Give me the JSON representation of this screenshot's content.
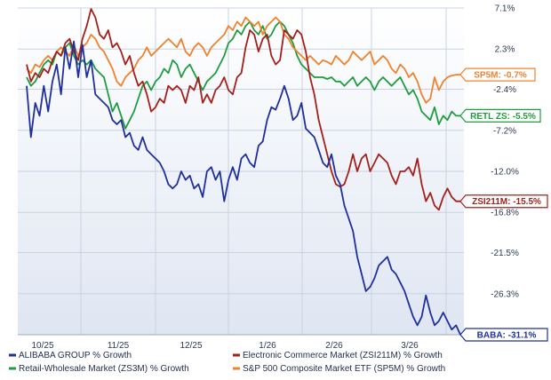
{
  "chart_data": {
    "type": "line",
    "x_ticks": [
      "10/25",
      "11/25",
      "12/25",
      "1/26",
      "2/26",
      "3/26"
    ],
    "y_ticks": [
      "7.1%",
      "2.3%",
      "-2.4%",
      "-7.2%",
      "-12.0%",
      "-16.8%",
      "-21.5%",
      "-26.3%",
      "-31.1%"
    ],
    "ylim": [
      -31.1,
      7.1
    ],
    "grid": true,
    "legend_position": "bottom",
    "series": [
      {
        "name": "ALIBABA GROUP % Growth",
        "color": "#1f2f9c",
        "end_label": "BABA: -31.1%",
        "values": [
          -2.0,
          -8.0,
          -4.0,
          -5.5,
          -2.0,
          -5.0,
          -1.5,
          0.5,
          -3.0,
          2.5,
          0.0,
          3.2,
          -1.0,
          2.8,
          -1.0,
          1.0,
          -3.0,
          -3.5,
          -4.0,
          -4.5,
          -6.0,
          -6.5,
          -6.0,
          -8.0,
          -7.5,
          -9.0,
          -9.5,
          -8.0,
          -9.5,
          -10.0,
          -10.5,
          -11.0,
          -12.0,
          -13.5,
          -14.0,
          -13.5,
          -12.0,
          -13.0,
          -12.5,
          -14.0,
          -13.5,
          -15.0,
          -12.0,
          -11.5,
          -13.0,
          -12.0,
          -15.5,
          -13.0,
          -11.5,
          -13.0,
          -10.5,
          -10.0,
          -11.0,
          -11.5,
          -9.0,
          -8.5,
          -6.0,
          -4.5,
          -4.8,
          -3.5,
          -2.0,
          -3.5,
          -6.0,
          -5.5,
          -4.0,
          -7.0,
          -7.5,
          -8.0,
          -9.5,
          -11.0,
          -11.5,
          -10.0,
          -12.5,
          -13.5,
          -16.0,
          -17.5,
          -19.0,
          -22.0,
          -24.0,
          -26.0,
          -25.5,
          -24.5,
          -23.0,
          -22.5,
          -22.0,
          -23.5,
          -24.0,
          -25.0,
          -26.0,
          -27.5,
          -29.0,
          -30.0,
          -29.0,
          -26.5,
          -28.5,
          -30.0,
          -29.5,
          -28.5,
          -29.5,
          -30.5,
          -30.0,
          -31.1
        ]
      },
      {
        "name": "Electronic Commerce Market (ZSI211M) % Growth",
        "color": "#a3201b",
        "end_label": "ZSI211M: -15.5%",
        "values": [
          0.5,
          -1.5,
          -0.5,
          -1.0,
          0.0,
          -0.5,
          1.0,
          2.0,
          1.5,
          3.0,
          3.5,
          2.0,
          1.0,
          3.5,
          5.0,
          7.0,
          6.0,
          4.0,
          3.5,
          4.5,
          2.5,
          3.0,
          2.0,
          0.5,
          1.5,
          -0.5,
          -2.0,
          -1.5,
          -3.0,
          -5.0,
          -4.5,
          -3.5,
          -4.0,
          -2.0,
          -2.5,
          -2.0,
          -2.5,
          -4.0,
          -2.0,
          -2.5,
          -1.0,
          -4.0,
          -3.0,
          -4.0,
          -2.5,
          -2.0,
          -1.0,
          -2.5,
          -3.0,
          -1.0,
          -0.5,
          2.5,
          4.5,
          4.0,
          2.0,
          3.5,
          4.0,
          1.5,
          0.5,
          1.0,
          4.5,
          4.0,
          3.5,
          4.5,
          4.0,
          2.0,
          -1.0,
          -3.0,
          -6.0,
          -8.0,
          -10.0,
          -12.0,
          -13.5,
          -13.8,
          -13.5,
          -12.0,
          -10.0,
          -12.0,
          -10.5,
          -10.0,
          -12.0,
          -11.0,
          -10.0,
          -10.5,
          -11.0,
          -12.5,
          -13.5,
          -12.0,
          -12.0,
          -11.5,
          -12.5,
          -10.5,
          -13.5,
          -15.5,
          -14.5,
          -16.0,
          -16.5,
          -15.0,
          -14.0,
          -15.0,
          -15.5,
          -15.5
        ]
      },
      {
        "name": "Retail-Wholesale Market (ZS3M) % Growth",
        "color": "#1f9c40",
        "end_label": "RETL ZS: -5.5%",
        "values": [
          -1.0,
          -2.0,
          -1.5,
          -0.5,
          0.5,
          1.0,
          0.5,
          2.0,
          1.5,
          2.5,
          3.0,
          1.5,
          0.5,
          1.0,
          0.5,
          1.0,
          0.0,
          -0.5,
          -1.0,
          -3.0,
          -5.0,
          -4.0,
          -5.5,
          -7.0,
          -6.0,
          -5.0,
          -3.5,
          -2.0,
          -1.5,
          -2.5,
          -1.5,
          -1.0,
          0.0,
          -0.5,
          1.0,
          0.5,
          -1.0,
          0.0,
          0.5,
          -0.5,
          -1.5,
          -2.5,
          -1.5,
          -1.0,
          -0.5,
          0.5,
          1.5,
          3.0,
          3.5,
          4.5,
          4.0,
          5.0,
          5.5,
          4.5,
          4.0,
          5.0,
          3.5,
          4.0,
          5.0,
          5.5,
          5.0,
          4.0,
          3.0,
          1.5,
          0.5,
          0.0,
          -0.5,
          -1.0,
          -1.0,
          -1.0,
          -1.2,
          -1.0,
          -1.5,
          -1.5,
          -2.0,
          -1.5,
          -1.0,
          -2.0,
          -1.5,
          -1.0,
          -1.5,
          -2.5,
          -1.5,
          -1.0,
          -1.5,
          -2.0,
          -1.5,
          -1.0,
          -2.0,
          -3.0,
          -2.5,
          -3.5,
          -5.0,
          -5.5,
          -6.0,
          -4.5,
          -6.5,
          -5.5,
          -6.0,
          -5.0,
          -5.5,
          -5.5
        ]
      },
      {
        "name": "S&P 500 Composite Market ETF (SP5M) % Growth",
        "color": "#f0822d",
        "end_label": "SP5M: -0.7%",
        "values": [
          0.0,
          -0.5,
          0.5,
          0.2,
          1.0,
          1.5,
          1.0,
          2.0,
          2.5,
          2.0,
          1.5,
          2.8,
          1.5,
          2.5,
          3.0,
          4.0,
          3.5,
          2.5,
          2.0,
          1.0,
          0.0,
          -1.5,
          -2.0,
          -1.0,
          -0.5,
          0.0,
          1.0,
          1.5,
          2.5,
          1.5,
          2.0,
          2.5,
          3.0,
          3.5,
          3.0,
          2.5,
          3.5,
          2.0,
          1.5,
          2.5,
          3.0,
          2.5,
          1.5,
          2.5,
          3.0,
          3.5,
          4.0,
          5.0,
          4.5,
          5.5,
          5.0,
          6.0,
          5.5,
          5.0,
          5.5,
          4.0,
          5.0,
          5.5,
          6.0,
          5.5,
          4.0,
          3.5,
          2.5,
          2.0,
          1.5,
          1.0,
          1.5,
          1.0,
          0.5,
          1.0,
          0.8,
          0.5,
          1.5,
          1.0,
          0.5,
          1.0,
          2.0,
          1.5,
          1.0,
          1.5,
          2.0,
          0.5,
          1.0,
          1.5,
          1.0,
          0.0,
          -0.5,
          0.5,
          0.0,
          -1.0,
          -0.5,
          -1.5,
          -3.0,
          -4.0,
          -3.5,
          -1.0,
          -2.5,
          -1.5,
          -1.0,
          -0.8,
          -0.7,
          -0.7
        ]
      }
    ]
  },
  "legend": {
    "items": [
      {
        "label": "ALIBABA GROUP % Growth",
        "color": "#1f2f9c"
      },
      {
        "label": "Electronic Commerce Market (ZSI211M) % Growth",
        "color": "#a3201b"
      },
      {
        "label": "Retail-Wholesale Market (ZS3M) % Growth",
        "color": "#1f9c40"
      },
      {
        "label": "S&P 500 Composite Market ETF (SP5M) % Growth",
        "color": "#f0822d"
      }
    ]
  },
  "colors": {
    "plot_bg_top": "#ffffff",
    "plot_bg_bottom": "#dfe6f2",
    "grid": "#c9d2e2",
    "axis_text": "#2a3a55"
  }
}
